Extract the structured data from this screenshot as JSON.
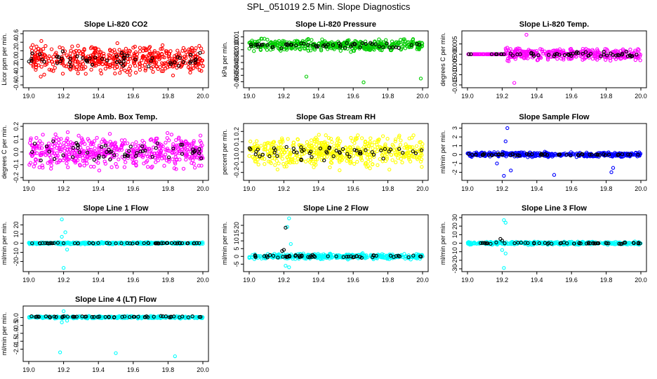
{
  "title": "SPL_051019  2.5 Min. Slope Diagnostics",
  "colors": {
    "red": "#ff0000",
    "green": "#00cc00",
    "magenta": "#ff00ff",
    "yellow": "#ffff00",
    "blue": "#0000ff",
    "cyan": "#00ffff",
    "black": "#000000"
  },
  "chart_data": [
    {
      "type": "scatter",
      "title": "Slope Li-820 CO2",
      "ylabel": "Licor ppm per min.",
      "color": "red",
      "xlim": [
        19.0,
        20.0
      ],
      "ylim": [
        -0.6,
        0.6
      ],
      "xticks": [
        "19.0",
        "19.2",
        "19.4",
        "19.6",
        "19.8",
        "20.0"
      ],
      "yticks": [
        {
          "v": -0.6,
          "t": "-0.6"
        },
        {
          "v": -0.4,
          "t": "-0.4"
        },
        {
          "v": -0.2,
          "t": "-0.2"
        },
        {
          "v": 0.0,
          "t": "0.0"
        },
        {
          "v": 0.2,
          "t": "0.2"
        },
        {
          "v": 0.4,
          "t": "0.4"
        },
        {
          "v": 0.6,
          "t": "0.6"
        }
      ],
      "series": [
        {
          "name": "main",
          "seed": 11,
          "n": 520,
          "mean": 0.0,
          "spread": 0.45,
          "outliers": []
        },
        {
          "name": "black",
          "seed": 12,
          "n": 55,
          "mean": 0.0,
          "spread": 0.25,
          "outliers": []
        }
      ]
    },
    {
      "type": "scatter",
      "title": "Slope Li-820 Pressure",
      "ylabel": "kPa per min.",
      "color": "green",
      "xlim": [
        19.0,
        20.0
      ],
      "ylim": [
        -0.065,
        0.015
      ],
      "xticks": [
        "19.0",
        "19.2",
        "19.4",
        "19.6",
        "19.8",
        "20.0"
      ],
      "yticks": [
        {
          "v": -0.06,
          "t": "-0.06"
        },
        {
          "v": -0.05,
          "t": "-0.05"
        },
        {
          "v": -0.04,
          "t": "-0.04"
        },
        {
          "v": -0.03,
          "t": "-0.03"
        },
        {
          "v": -0.02,
          "t": "-0.02"
        },
        {
          "v": -0.01,
          "t": "-0.01"
        },
        {
          "v": 0.0,
          "t": "0.00"
        },
        {
          "v": 0.01,
          "t": "0.01"
        }
      ],
      "series": [
        {
          "name": "main",
          "seed": 21,
          "n": 420,
          "mean": -0.003,
          "spread": 0.012,
          "outliers": [
            [
              19.33,
              -0.052
            ],
            [
              19.66,
              -0.061
            ],
            [
              19.99,
              -0.055
            ]
          ]
        },
        {
          "name": "black",
          "seed": 22,
          "n": 55,
          "mean": -0.003,
          "spread": 0.006,
          "outliers": []
        }
      ]
    },
    {
      "type": "scatter",
      "title": "Slope Li-820 Temp.",
      "ylabel": "degrees C per min.",
      "color": "magenta",
      "xlim": [
        19.0,
        20.0
      ],
      "ylim": [
        -0.015,
        0.01
      ],
      "xticks": [
        "19.0",
        "19.2",
        "19.4",
        "19.6",
        "19.8",
        "20.0"
      ],
      "yticks": [
        {
          "v": -0.015,
          "t": "-0.015"
        },
        {
          "v": -0.01,
          "t": "-0.010"
        },
        {
          "v": -0.005,
          "t": "-0.005"
        },
        {
          "v": 0.0,
          "t": "0.000"
        },
        {
          "v": 0.005,
          "t": "0.005"
        }
      ],
      "series": [
        {
          "name": "main",
          "seed": 31,
          "n": 420,
          "mean": 0.0,
          "spread": 0.004,
          "flat": [
            19.0,
            19.22
          ],
          "outliers": [
            [
              19.27,
              -0.014
            ],
            [
              19.34,
              0.0095
            ]
          ]
        },
        {
          "name": "black",
          "seed": 32,
          "n": 55,
          "mean": 0.0,
          "spread": 0.002,
          "flat": [
            19.0,
            19.22
          ],
          "outliers": []
        }
      ]
    },
    {
      "type": "scatter",
      "title": "Slope Amb. Box Temp.",
      "ylabel": "degrees C per min.",
      "color": "magenta",
      "xlim": [
        19.0,
        20.0
      ],
      "ylim": [
        -0.2,
        0.2
      ],
      "xticks": [
        "19.0",
        "19.2",
        "19.4",
        "19.6",
        "19.8",
        "20.0"
      ],
      "yticks": [
        {
          "v": -0.2,
          "t": "-0.2"
        },
        {
          "v": -0.1,
          "t": "-0.1"
        },
        {
          "v": 0.0,
          "t": "0.0"
        },
        {
          "v": 0.1,
          "t": "0.1"
        },
        {
          "v": 0.2,
          "t": "0.2"
        }
      ],
      "series": [
        {
          "name": "main",
          "seed": 41,
          "n": 520,
          "mean": 0.0,
          "spread": 0.17,
          "outliers": []
        },
        {
          "name": "black",
          "seed": 42,
          "n": 55,
          "mean": 0.0,
          "spread": 0.1,
          "outliers": []
        }
      ]
    },
    {
      "type": "scatter",
      "title": "Slope Gas Stream RH",
      "ylabel": "percent per min.",
      "color": "yellow",
      "xlim": [
        19.0,
        20.0
      ],
      "ylim": [
        -0.25,
        0.25
      ],
      "xticks": [
        "19.0",
        "19.2",
        "19.4",
        "19.6",
        "19.8",
        "20.0"
      ],
      "yticks": [
        {
          "v": -0.2,
          "t": "-0.2"
        },
        {
          "v": -0.1,
          "t": "-0.1"
        },
        {
          "v": 0.0,
          "t": "0.0"
        },
        {
          "v": 0.1,
          "t": "0.1"
        },
        {
          "v": 0.2,
          "t": "0.2"
        }
      ],
      "series": [
        {
          "name": "main",
          "seed": 51,
          "n": 520,
          "mean": 0.0,
          "spread": 0.2,
          "outliers": []
        },
        {
          "name": "black",
          "seed": 52,
          "n": 55,
          "mean": 0.0,
          "spread": 0.1,
          "outliers": []
        }
      ]
    },
    {
      "type": "scatter",
      "title": "Slope Sample Flow",
      "ylabel": "ml/min per min.",
      "color": "blue",
      "xlim": [
        19.0,
        20.0
      ],
      "ylim": [
        -2.6,
        3.2
      ],
      "xticks": [
        "19.0",
        "19.2",
        "19.4",
        "19.6",
        "19.8",
        "20.0"
      ],
      "yticks": [
        {
          "v": -2,
          "t": "-2"
        },
        {
          "v": -1,
          "t": "-1"
        },
        {
          "v": 0,
          "t": "0"
        },
        {
          "v": 1,
          "t": "1"
        },
        {
          "v": 2,
          "t": "2"
        },
        {
          "v": 3,
          "t": "3"
        }
      ],
      "series": [
        {
          "name": "main",
          "seed": 61,
          "n": 420,
          "mean": 0.0,
          "spread": 0.35,
          "outliers": [
            [
              19.23,
              3.0
            ],
            [
              19.21,
              -2.4
            ],
            [
              19.25,
              -1.8
            ],
            [
              19.17,
              -1.0
            ],
            [
              19.5,
              -2.3
            ],
            [
              19.83,
              -2.0
            ],
            [
              19.84,
              -1.5
            ],
            [
              19.22,
              1.5
            ]
          ]
        },
        {
          "name": "black",
          "seed": 62,
          "n": 55,
          "mean": 0.0,
          "spread": 0.15,
          "outliers": []
        }
      ]
    },
    {
      "type": "scatter",
      "title": "Slope Line 1 Flow",
      "ylabel": "ml/min per min.",
      "color": "cyan",
      "xlim": [
        19.0,
        20.0
      ],
      "ylim": [
        -28,
        28
      ],
      "xticks": [
        "19.0",
        "19.2",
        "19.4",
        "19.6",
        "19.8",
        "20.0"
      ],
      "yticks": [
        {
          "v": -20,
          "t": "-20"
        },
        {
          "v": -10,
          "t": "-10"
        },
        {
          "v": 0,
          "t": "0"
        },
        {
          "v": 10,
          "t": "10"
        },
        {
          "v": 20,
          "t": "20"
        }
      ],
      "series": [
        {
          "name": "main",
          "seed": 71,
          "n": 420,
          "mean": 0.0,
          "spread": 1.5,
          "outliers": [
            [
              19.19,
              26
            ],
            [
              19.2,
              -27
            ],
            [
              19.21,
              12
            ],
            [
              19.22,
              -7
            ],
            [
              19.19,
              7
            ]
          ]
        },
        {
          "name": "black",
          "seed": 72,
          "n": 55,
          "mean": 0.0,
          "spread": 0.5,
          "outliers": []
        }
      ]
    },
    {
      "type": "scatter",
      "title": "Slope Line 2 Flow",
      "ylabel": "ml/min per min.",
      "color": "cyan",
      "xlim": [
        19.0,
        20.0
      ],
      "ylim": [
        -8,
        25
      ],
      "xticks": [
        "19.0",
        "19.2",
        "19.4",
        "19.6",
        "19.8",
        "20.0"
      ],
      "yticks": [
        {
          "v": -5,
          "t": "-5"
        },
        {
          "v": 0,
          "t": "0"
        },
        {
          "v": 5,
          "t": "5"
        },
        {
          "v": 10,
          "t": "10"
        },
        {
          "v": 15,
          "t": "15"
        },
        {
          "v": 20,
          "t": "20"
        }
      ],
      "series": [
        {
          "name": "main",
          "seed": 81,
          "n": 420,
          "mean": 0.0,
          "spread": 2.4,
          "outliers": [
            [
              19.23,
              24.5
            ],
            [
              19.22,
              19
            ],
            [
              19.24,
              8
            ],
            [
              19.21,
              -6
            ],
            [
              19.23,
              -7
            ]
          ]
        },
        {
          "name": "black",
          "seed": 82,
          "n": 55,
          "mean": 0.0,
          "spread": 1.2,
          "outliers": [
            [
              19.21,
              18.5
            ],
            [
              19.19,
              3.5
            ],
            [
              19.2,
              4.2
            ]
          ]
        }
      ]
    },
    {
      "type": "scatter",
      "title": "Slope Line 3 Flow",
      "ylabel": "ml/min per min.",
      "color": "cyan",
      "xlim": [
        19.0,
        20.0
      ],
      "ylim": [
        -30,
        30
      ],
      "xticks": [
        "19.0",
        "19.2",
        "19.4",
        "19.6",
        "19.8",
        "20.0"
      ],
      "yticks": [
        {
          "v": -30,
          "t": "-30"
        },
        {
          "v": -20,
          "t": "-20"
        },
        {
          "v": -10,
          "t": "-10"
        },
        {
          "v": 0,
          "t": "0"
        },
        {
          "v": 10,
          "t": "10"
        },
        {
          "v": 20,
          "t": "20"
        },
        {
          "v": 30,
          "t": "30"
        }
      ],
      "series": [
        {
          "name": "main",
          "seed": 91,
          "n": 420,
          "mean": 0.0,
          "spread": 2.5,
          "outliers": [
            [
              19.21,
              27
            ],
            [
              19.22,
              24
            ],
            [
              19.21,
              -29
            ],
            [
              19.22,
              -12
            ],
            [
              19.2,
              -8
            ]
          ]
        },
        {
          "name": "black",
          "seed": 92,
          "n": 55,
          "mean": 0.0,
          "spread": 1.4,
          "outliers": [
            [
              19.19,
              5
            ],
            [
              19.2,
              3
            ]
          ]
        }
      ]
    },
    {
      "type": "scatter",
      "title": "Slope Line 4 (LT) Flow",
      "ylabel": "ml/min per min.",
      "color": "cyan",
      "xlim": [
        19.0,
        20.0
      ],
      "ylim": [
        -2.6,
        0.55
      ],
      "xticks": [
        "19.0",
        "19.2",
        "19.4",
        "19.6",
        "19.8",
        "20.0"
      ],
      "yticks": [
        {
          "v": -2.0,
          "t": "-2.0"
        },
        {
          "v": -1.5,
          "t": "-1.5"
        },
        {
          "v": -1.0,
          "t": "-1.0"
        },
        {
          "v": -0.5,
          "t": "-0.5"
        },
        {
          "v": 0.0,
          "t": "0.0"
        }
      ],
      "series": [
        {
          "name": "main",
          "seed": 101,
          "n": 420,
          "mean": 0.02,
          "spread": 0.1,
          "outliers": [
            [
              19.18,
              -2.2
            ],
            [
              19.5,
              -2.25
            ],
            [
              19.84,
              -2.45
            ],
            [
              19.2,
              0.4
            ],
            [
              19.22,
              -0.2
            ],
            [
              19.19,
              -0.3
            ]
          ]
        },
        {
          "name": "black",
          "seed": 102,
          "n": 55,
          "mean": 0.05,
          "spread": 0.06,
          "outliers": []
        }
      ]
    }
  ]
}
